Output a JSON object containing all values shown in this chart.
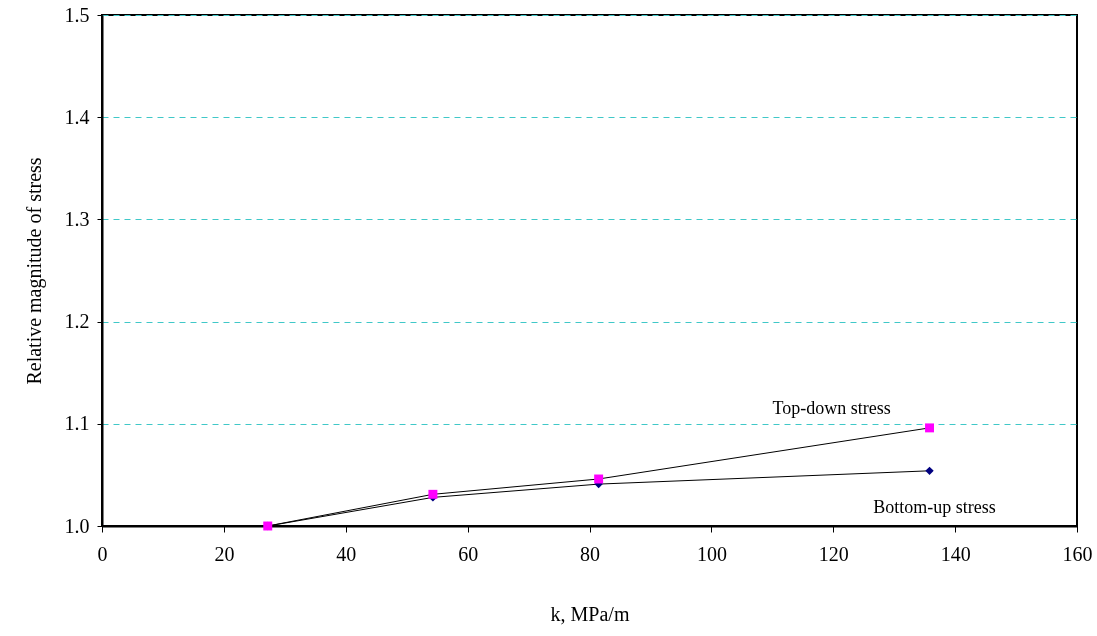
{
  "chart_data": {
    "type": "line",
    "xlabel": "k, MPa/m",
    "ylabel": "Relative magnitude of stress",
    "xlim": [
      0,
      160
    ],
    "xticks": [
      0,
      20,
      40,
      60,
      80,
      100,
      120,
      140,
      160
    ],
    "ylim": [
      1.0,
      1.5
    ],
    "yticks": [
      {
        "value": 1.0,
        "label": "1.0"
      },
      1.1,
      1.2,
      1.3,
      1.4,
      1.5
    ],
    "grid": "y",
    "line_style": "solid",
    "series": [
      {
        "name": "Bottom-up stress",
        "color": "#000080",
        "marker": "diamond",
        "x": [
          27.2,
          54.3,
          81.5,
          135.8
        ],
        "values": [
          1.0,
          1.028,
          1.041,
          1.054
        ]
      },
      {
        "name": "Top-down stress",
        "color": "#ff00ff",
        "marker": "square",
        "x": [
          27.2,
          54.3,
          81.5,
          135.8
        ],
        "values": [
          1.0,
          1.031,
          1.046,
          1.096
        ]
      }
    ]
  }
}
